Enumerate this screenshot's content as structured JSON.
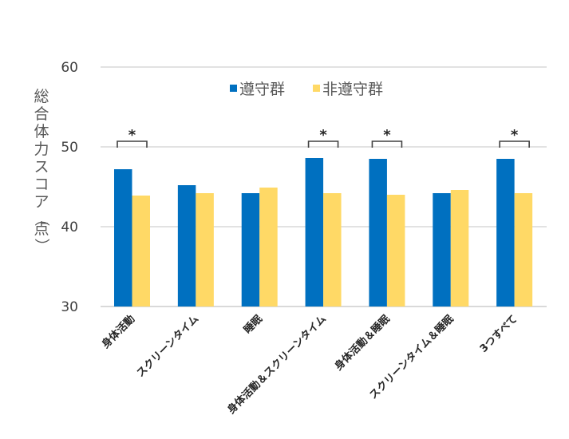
{
  "chart_data": {
    "type": "bar",
    "title": "",
    "xlabel": "",
    "ylabel": "総合体力スコア（点）",
    "ylim": [
      30,
      60
    ],
    "yticks": [
      30,
      40,
      50,
      60
    ],
    "grid": true,
    "legend_position": "top",
    "categories": [
      "身体活動",
      "スクリーンタイム",
      "睡眠",
      "身体活動＆スクリーンタイム",
      "身体活動＆睡眠",
      "スクリーンタイム＆睡眠",
      "3つすべて"
    ],
    "series": [
      {
        "name": "遵守群",
        "color": "#0070C0",
        "values": [
          47.2,
          45.2,
          44.2,
          48.6,
          48.5,
          44.2,
          48.5
        ]
      },
      {
        "name": "非遵守群",
        "color": "#FFD966",
        "values": [
          43.9,
          44.2,
          44.9,
          44.2,
          44.0,
          44.6,
          44.2
        ]
      }
    ],
    "significance_marker": "*",
    "significant": [
      true,
      false,
      false,
      true,
      true,
      false,
      true
    ]
  },
  "legend": {
    "items": [
      {
        "label": "遵守群",
        "color": "#0070C0"
      },
      {
        "label": "非遵守群",
        "color": "#FFD966"
      }
    ]
  },
  "axis": {
    "ylabel": "総合体力スコア（点）",
    "yticks": [
      "30",
      "40",
      "50",
      "60"
    ]
  }
}
